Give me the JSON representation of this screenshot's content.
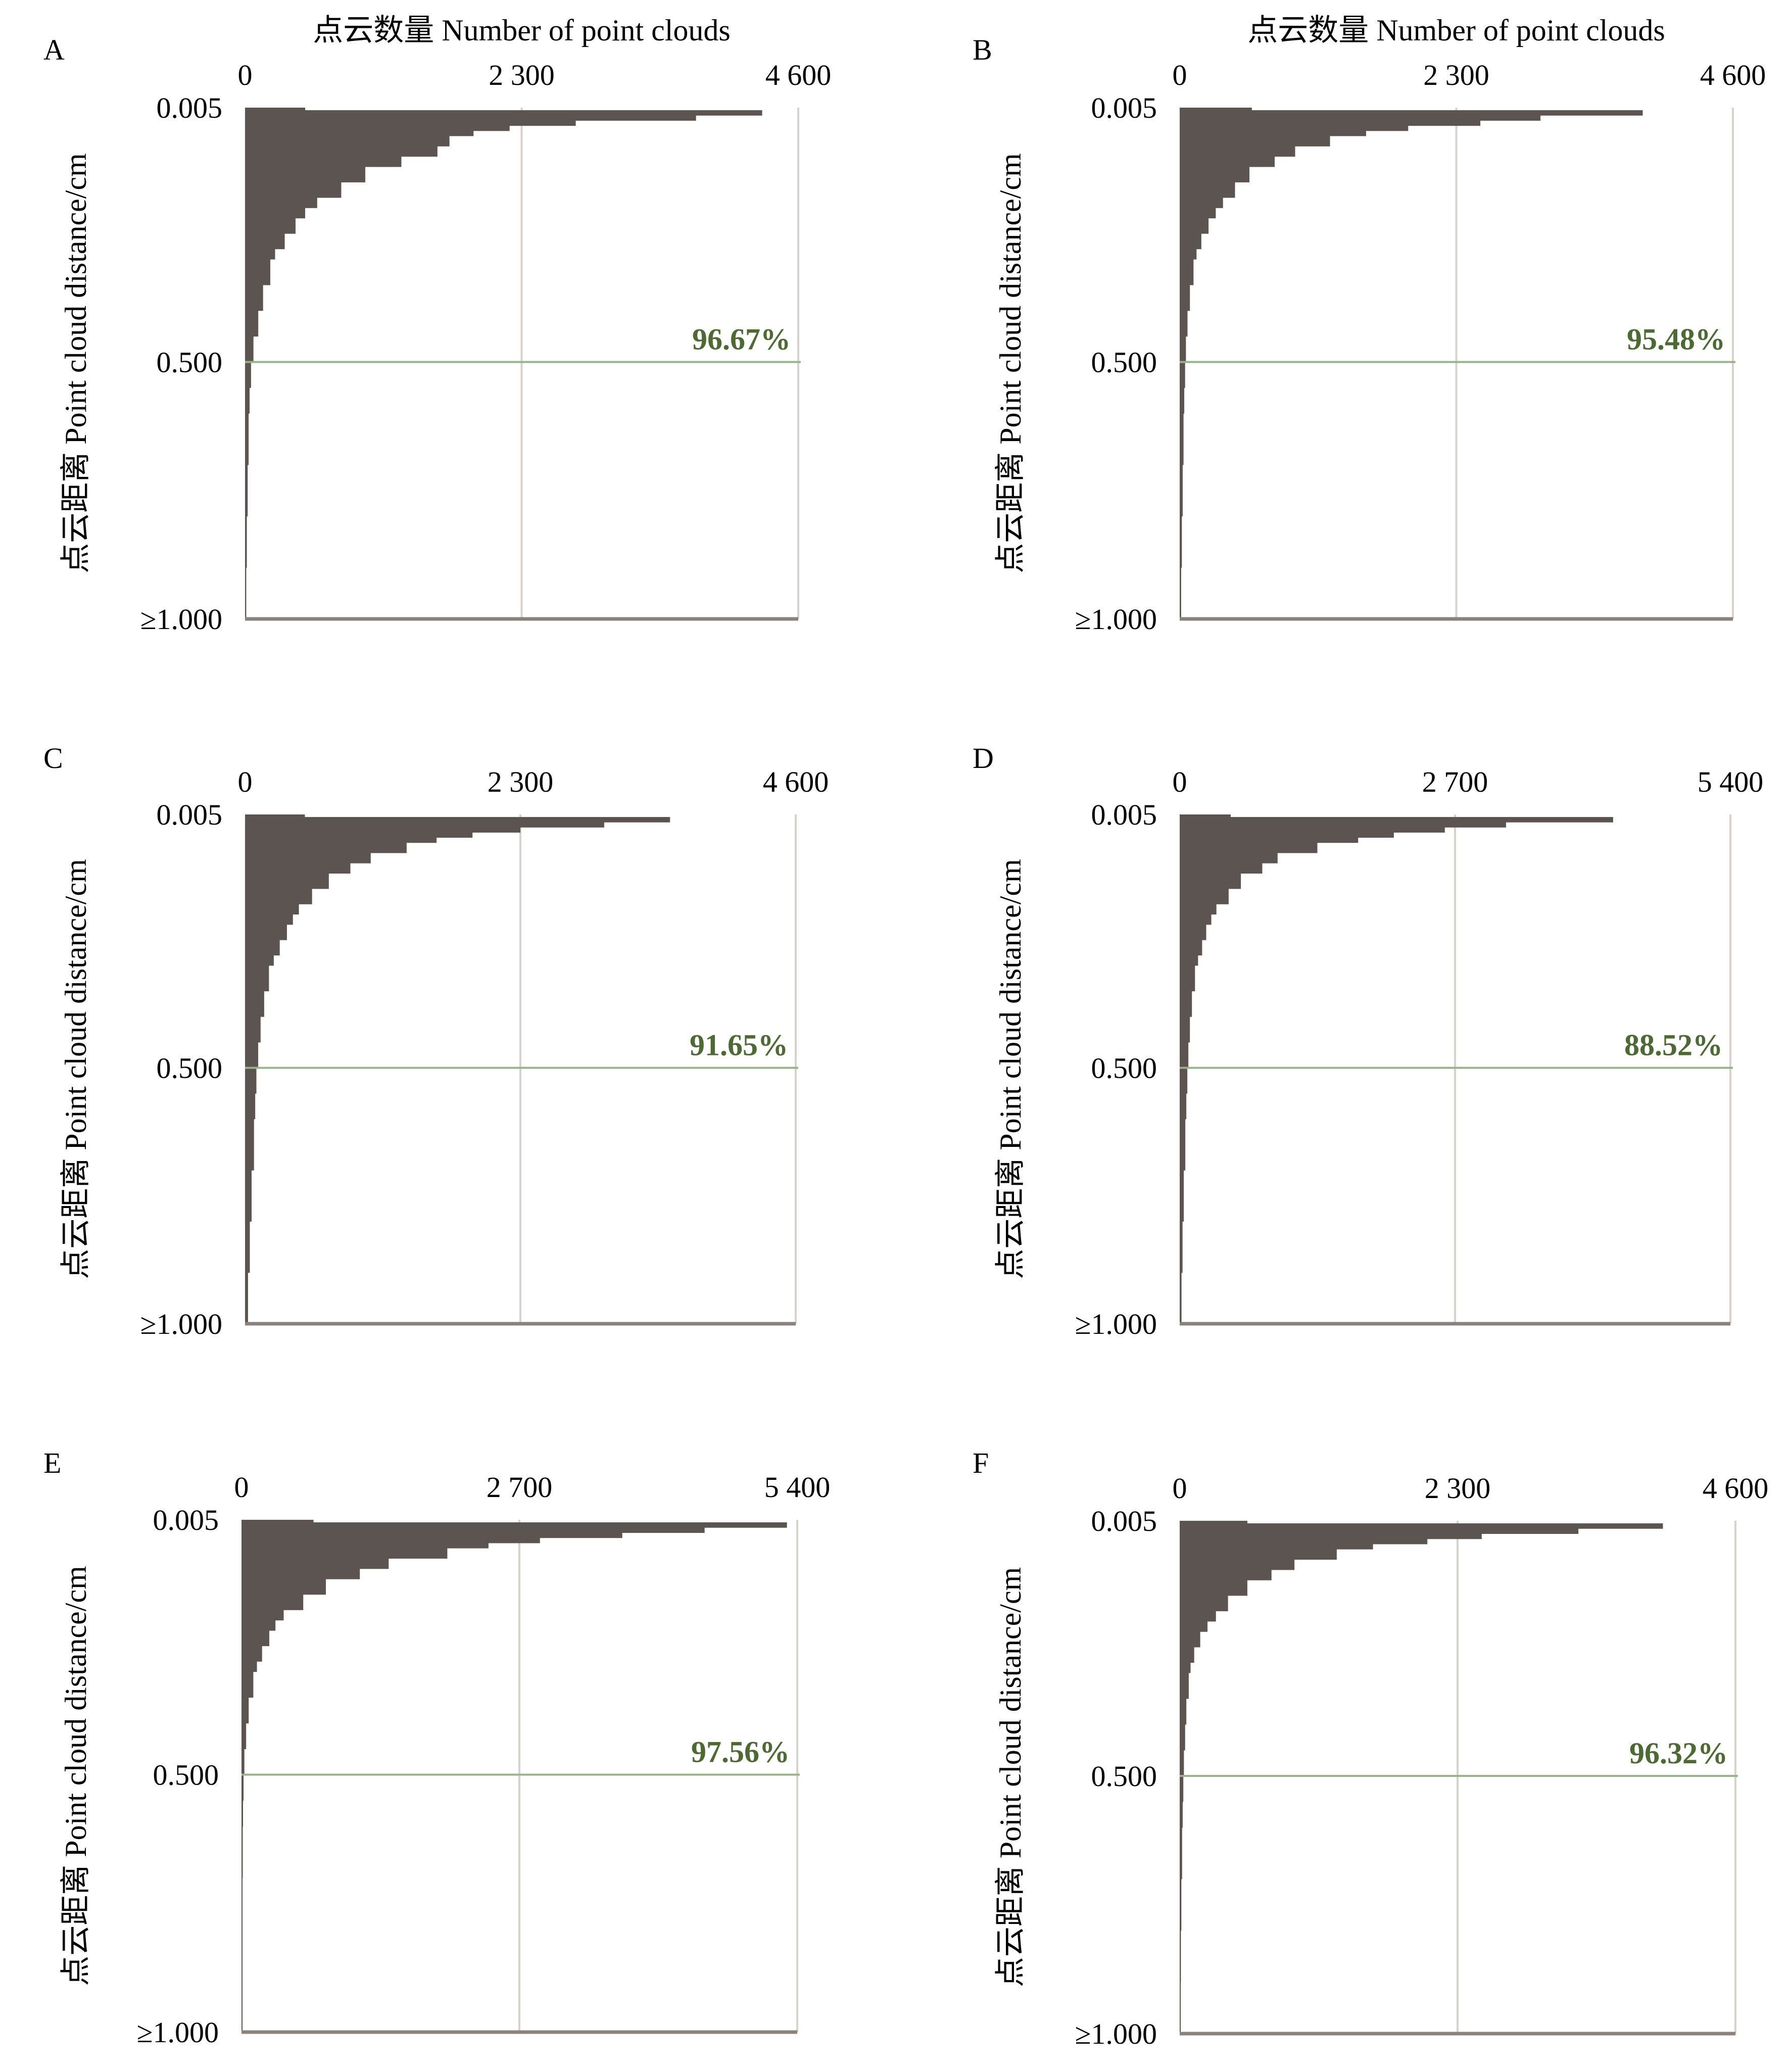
{
  "colors": {
    "bars": "#5c5451",
    "threshold_line": "#97b487",
    "percent_text": "#4d6a33",
    "midline": "#d7d2cd",
    "axis": "#8a817b"
  },
  "chart_data": [
    {
      "type": "bar",
      "orientation": "horizontal",
      "panel": "A",
      "xlabel": "点云数量 Number of point clouds",
      "ylabel": "点云距离 Point cloud distance/cm",
      "xlim": [
        0,
        4600
      ],
      "xticks": [
        "0",
        "2 300",
        "4 600"
      ],
      "yticks": [
        "0.005",
        "0.500",
        "≥1.000"
      ],
      "ylim": [
        0.005,
        1.0
      ],
      "threshold": 0.5,
      "percent_label": "96.67%",
      "y": [
        0.005,
        0.01,
        0.02,
        0.03,
        0.04,
        0.05,
        0.06,
        0.08,
        0.1,
        0.12,
        0.15,
        0.18,
        0.2,
        0.22,
        0.25,
        0.28,
        0.3,
        0.35,
        0.4,
        0.45,
        0.5,
        0.55,
        0.6,
        0.7,
        0.8,
        0.9,
        1.0
      ],
      "values": [
        500,
        4300,
        3750,
        2750,
        2200,
        1900,
        1700,
        1600,
        1300,
        1000,
        800,
        600,
        500,
        420,
        330,
        250,
        210,
        150,
        110,
        70,
        50,
        38,
        30,
        22,
        15,
        10,
        8
      ]
    },
    {
      "type": "bar",
      "orientation": "horizontal",
      "panel": "B",
      "xlabel": "点云数量 Number of point clouds",
      "ylabel": "点云距离 Point cloud distance/cm",
      "xlim": [
        0,
        4600
      ],
      "xticks": [
        "0",
        "2 300",
        "4 600"
      ],
      "yticks": [
        "0.005",
        "0.500",
        "≥1.000"
      ],
      "ylim": [
        0.005,
        1.0
      ],
      "threshold": 0.5,
      "percent_label": "95.48%",
      "y": [
        0.005,
        0.01,
        0.02,
        0.03,
        0.04,
        0.05,
        0.06,
        0.08,
        0.1,
        0.12,
        0.15,
        0.18,
        0.2,
        0.22,
        0.25,
        0.28,
        0.3,
        0.35,
        0.4,
        0.45,
        0.5,
        0.55,
        0.6,
        0.7,
        0.8,
        0.9,
        1.0
      ],
      "values": [
        600,
        3850,
        3000,
        2500,
        1900,
        1550,
        1250,
        960,
        790,
        580,
        460,
        360,
        300,
        240,
        180,
        140,
        115,
        85,
        65,
        52,
        45,
        38,
        32,
        25,
        18,
        12,
        8
      ]
    },
    {
      "type": "bar",
      "orientation": "horizontal",
      "panel": "C",
      "xlabel": "",
      "ylabel": "点云距离 Point cloud distance/cm",
      "xlim": [
        0,
        4600
      ],
      "xticks": [
        "0",
        "2 300",
        "4 600"
      ],
      "yticks": [
        "0.005",
        "0.500",
        "≥1.000"
      ],
      "ylim": [
        0.005,
        1.0
      ],
      "threshold": 0.5,
      "percent_label": "91.65%",
      "y": [
        0.005,
        0.01,
        0.02,
        0.03,
        0.04,
        0.05,
        0.06,
        0.08,
        0.1,
        0.12,
        0.15,
        0.18,
        0.2,
        0.22,
        0.25,
        0.28,
        0.3,
        0.35,
        0.4,
        0.45,
        0.5,
        0.55,
        0.6,
        0.7,
        0.8,
        0.9,
        1.0
      ],
      "values": [
        500,
        3550,
        3000,
        2300,
        1900,
        1600,
        1350,
        1050,
        880,
        700,
        560,
        450,
        400,
        350,
        290,
        240,
        200,
        160,
        130,
        110,
        95,
        85,
        75,
        55,
        40,
        25,
        15
      ]
    },
    {
      "type": "bar",
      "orientation": "horizontal",
      "panel": "D",
      "xlabel": "",
      "ylabel": "点云距离 Point cloud distance/cm",
      "xlim": [
        0,
        5400
      ],
      "xticks": [
        "0",
        "2 700",
        "5 400"
      ],
      "yticks": [
        "0.005",
        "0.500",
        "≥1.000"
      ],
      "ylim": [
        0.005,
        1.0
      ],
      "threshold": 0.5,
      "percent_label": "88.52%",
      "y": [
        0.005,
        0.01,
        0.02,
        0.03,
        0.04,
        0.05,
        0.06,
        0.08,
        0.1,
        0.12,
        0.15,
        0.18,
        0.2,
        0.22,
        0.25,
        0.28,
        0.3,
        0.35,
        0.4,
        0.45,
        0.5,
        0.55,
        0.6,
        0.7,
        0.8,
        0.9,
        1.0
      ],
      "values": [
        500,
        4250,
        3200,
        2600,
        2100,
        1750,
        1350,
        960,
        810,
        600,
        480,
        360,
        310,
        260,
        220,
        180,
        150,
        120,
        100,
        85,
        75,
        65,
        55,
        40,
        28,
        18,
        12
      ]
    },
    {
      "type": "bar",
      "orientation": "horizontal",
      "panel": "E",
      "xlabel": "",
      "ylabel": "点云距离 Point cloud distance/cm",
      "xlim": [
        0,
        5400
      ],
      "xticks": [
        "0",
        "2 700",
        "5 400"
      ],
      "yticks": [
        "0.005",
        "0.500",
        "≥1.000"
      ],
      "ylim": [
        0.005,
        1.0
      ],
      "threshold": 0.5,
      "percent_label": "97.56%",
      "y": [
        0.005,
        0.01,
        0.02,
        0.03,
        0.04,
        0.05,
        0.06,
        0.08,
        0.1,
        0.12,
        0.15,
        0.18,
        0.2,
        0.22,
        0.25,
        0.28,
        0.3,
        0.35,
        0.4,
        0.45,
        0.5,
        0.55,
        0.6,
        0.7,
        0.8,
        0.9,
        1.0
      ],
      "values": [
        700,
        5300,
        4500,
        3700,
        2900,
        2400,
        2000,
        1430,
        1150,
        820,
        600,
        410,
        330,
        270,
        200,
        150,
        115,
        70,
        45,
        28,
        20,
        15,
        12,
        8,
        5,
        4,
        3
      ]
    },
    {
      "type": "bar",
      "orientation": "horizontal",
      "panel": "F",
      "xlabel": "",
      "ylabel": "点云距离 Point cloud distance/cm",
      "xlim": [
        0,
        4600
      ],
      "xticks": [
        "0",
        "2 300",
        "4 600"
      ],
      "yticks": [
        "0.005",
        "0.500",
        "≥1.000"
      ],
      "ylim": [
        0.005,
        1.0
      ],
      "threshold": 0.5,
      "percent_label": "96.32%",
      "y": [
        0.005,
        0.01,
        0.02,
        0.03,
        0.04,
        0.05,
        0.06,
        0.08,
        0.1,
        0.12,
        0.15,
        0.18,
        0.2,
        0.22,
        0.25,
        0.28,
        0.3,
        0.35,
        0.4,
        0.45,
        0.5,
        0.55,
        0.6,
        0.7,
        0.8,
        0.9,
        1.0
      ],
      "values": [
        560,
        4000,
        3300,
        2500,
        2050,
        1600,
        1300,
        950,
        760,
        560,
        400,
        300,
        230,
        170,
        120,
        90,
        75,
        55,
        45,
        35,
        30,
        25,
        20,
        14,
        10,
        7,
        5
      ]
    }
  ]
}
